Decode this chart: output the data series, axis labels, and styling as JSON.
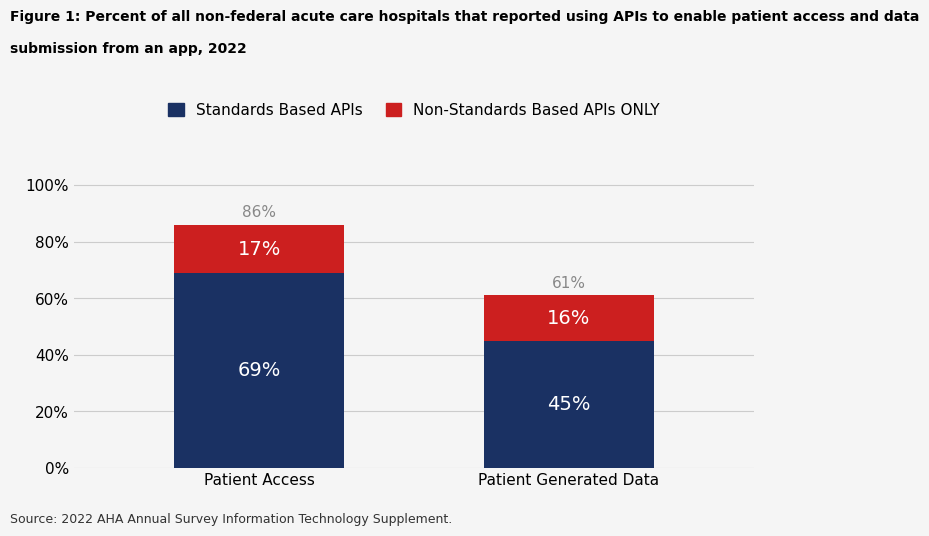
{
  "title_line1": "Figure 1: Percent of all non-federal acute care hospitals that reported using APIs to enable patient access and data",
  "title_line2": "submission from an app, 2022",
  "categories": [
    "Patient Access",
    "Patient Generated Data"
  ],
  "standards_values": [
    69,
    45
  ],
  "non_standards_values": [
    17,
    16
  ],
  "totals": [
    86,
    61
  ],
  "standards_labels": [
    "69%",
    "45%"
  ],
  "non_standards_labels": [
    "17%",
    "16%"
  ],
  "total_labels": [
    "86%",
    "61%"
  ],
  "standards_color": "#1a3163",
  "non_standards_color": "#cc1f1f",
  "legend_labels": [
    "Standards Based APIs",
    "Non-Standards Based APIs ONLY"
  ],
  "yticks": [
    0,
    20,
    40,
    60,
    80,
    100
  ],
  "ytick_labels": [
    "0%",
    "20%",
    "40%",
    "60%",
    "80%",
    "100%"
  ],
  "ylim": [
    0,
    108
  ],
  "background_color": "#f5f5f5",
  "plot_bg_color": "#f5f5f5",
  "source_text": "Source: 2022 AHA Annual Survey Information Technology Supplement.",
  "grid_color": "#cccccc",
  "bar_width": 0.55,
  "title_fontsize": 10,
  "tick_fontsize": 11,
  "legend_fontsize": 11,
  "source_fontsize": 9,
  "total_label_fontsize": 11,
  "inner_label_fontsize": 14,
  "inner_label_color": "#ffffff",
  "total_label_color": "#888888"
}
